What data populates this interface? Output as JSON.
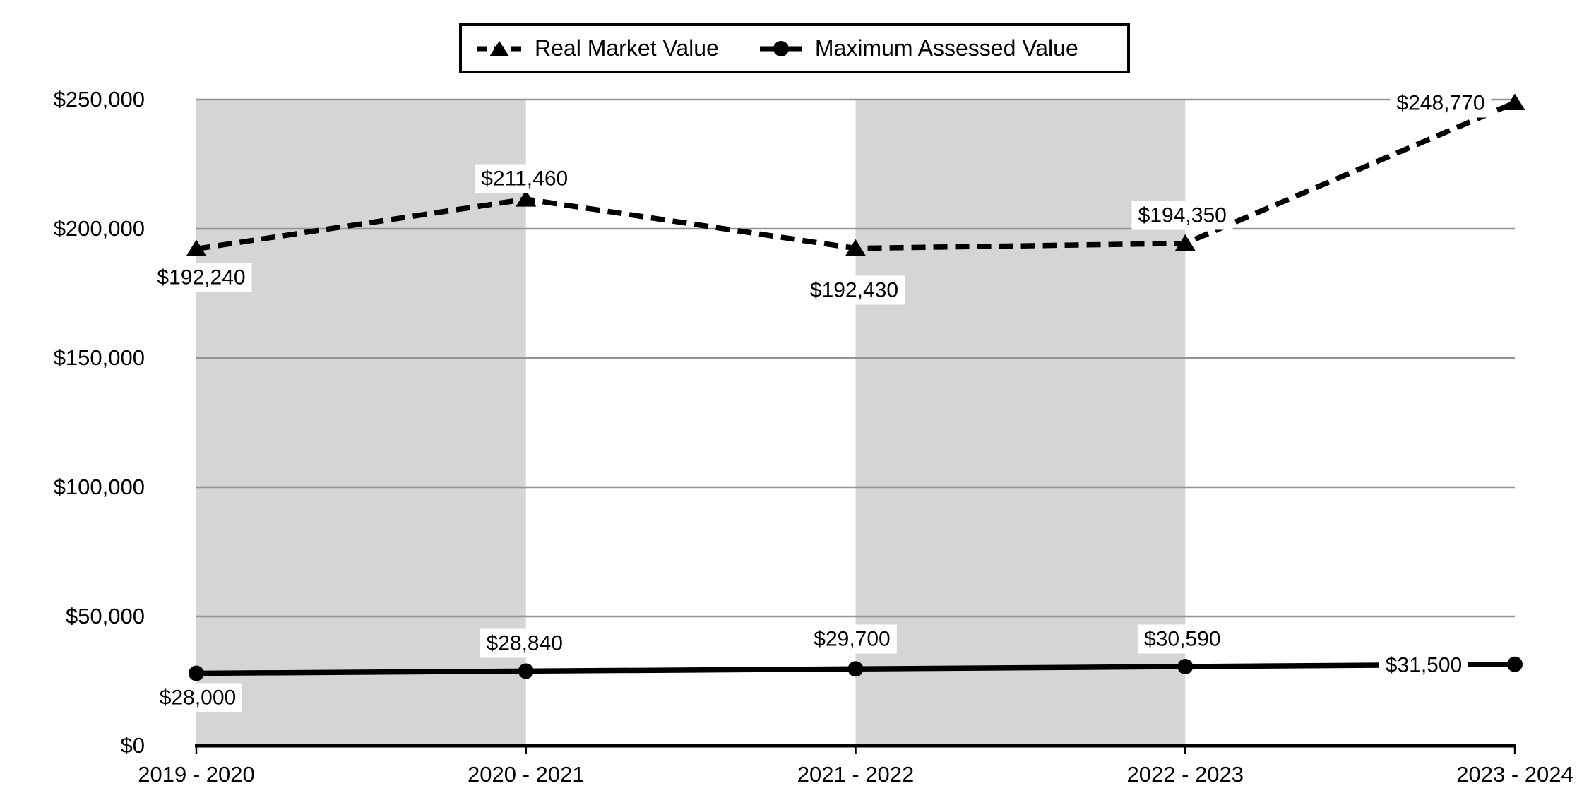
{
  "chart_data": {
    "type": "line",
    "title": "",
    "categories": [
      "2019 - 2020",
      "2020 - 2021",
      "2021 - 2022",
      "2022 - 2023",
      "2023 - 2024"
    ],
    "series": [
      {
        "name": "Real Market Value",
        "line_style": "dashed",
        "marker": "triangle",
        "color": "#000000",
        "values": [
          192240,
          211460,
          192430,
          194350,
          248770
        ],
        "data_labels": [
          "$192,240",
          "$211,460",
          "$192,430",
          "$194,350",
          "$248,770"
        ]
      },
      {
        "name": "Maximum Assessed Value",
        "line_style": "solid",
        "marker": "circle",
        "color": "#000000",
        "values": [
          28000,
          28840,
          29700,
          30590,
          31500
        ],
        "data_labels": [
          "$28,000",
          "$28,840",
          "$29,700",
          "$30,590",
          "$31,500"
        ]
      }
    ],
    "y_axis": {
      "min": 0,
      "max": 250000,
      "tick_step": 50000,
      "tick_labels": [
        "$0",
        "$50,000",
        "$100,000",
        "$150,000",
        "$200,000",
        "$250,000"
      ]
    },
    "legend_position": "top",
    "grid": true,
    "background_bands_between_categories": [
      [
        0,
        1
      ],
      [
        2,
        3
      ]
    ]
  },
  "colors": {
    "series": "#000000",
    "band": "#d5d5d5",
    "gridline": "#949494",
    "axis": "#000000",
    "label_background": "#ffffff"
  }
}
